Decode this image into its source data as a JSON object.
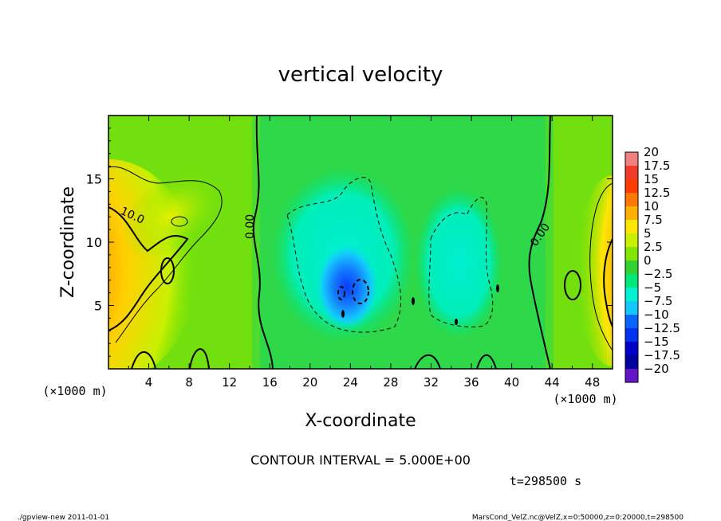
{
  "chart_data": {
    "type": "heatmap",
    "title": "vertical velocity",
    "xlabel": "X-coordinate",
    "ylabel": "Z-coordinate",
    "x_unit_label": "(×1000 m)",
    "z_unit_label": "(×1000 m)",
    "xlim": [
      0,
      50
    ],
    "ylim": [
      0,
      20
    ],
    "x_ticks": [
      4,
      8,
      12,
      16,
      20,
      24,
      28,
      32,
      36,
      40,
      44,
      48
    ],
    "y_ticks": [
      5,
      10,
      15
    ],
    "colorbar": {
      "levels": [
        "20",
        "17.5",
        "15",
        "12.5",
        "10",
        "7.5",
        "5",
        "2.5",
        "0",
        "−2.5",
        "−5",
        "−7.5",
        "−10",
        "−12.5",
        "−15",
        "−17.5",
        "−20"
      ],
      "colors": [
        "#f08080",
        "#f03a2a",
        "#ff3c00",
        "#ff7800",
        "#ffb000",
        "#ffe600",
        "#c8f000",
        "#82e600",
        "#32d232",
        "#00e678",
        "#00f0d2",
        "#14c8ff",
        "#0a64ff",
        "#0032f0",
        "#0000c8",
        "#0000a0",
        "#6414c8"
      ]
    },
    "contour_labels": [
      "10.0",
      "0.00",
      "0.00"
    ],
    "contour_interval": "CONTOUR INTERVAL = 5.000E+00",
    "time_label": "t=298500 s",
    "features": [
      {
        "name": "updraft-left",
        "x": 0.5,
        "z": 7.5,
        "max": 12.5
      },
      {
        "name": "updraft-right",
        "x": 49.8,
        "z": 7,
        "max": 12.5
      },
      {
        "name": "downdraft-center",
        "x": 23,
        "z": 6.5,
        "min": -12.5
      },
      {
        "name": "downdraft-right",
        "x": 35,
        "z": 9,
        "min": -5
      }
    ]
  },
  "footer": {
    "left": "./gpview-new   2011-01-01",
    "right": "MarsCond_VelZ.nc@VelZ,x=0:50000,z=0:20000,t=298500"
  }
}
